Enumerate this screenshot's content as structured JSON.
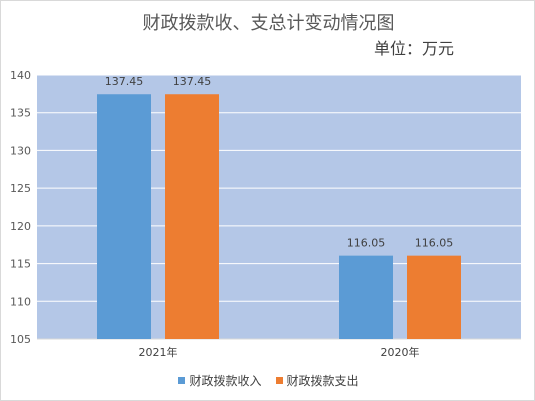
{
  "chart_data": {
    "type": "bar",
    "title": "财政拨款收、支总计变动情况图",
    "subtitle": "单位：万元",
    "categories": [
      "2021年",
      "2020年"
    ],
    "series": [
      {
        "name": "财政拨款收入",
        "values": [
          137.45,
          116.05
        ],
        "color": "#5B9BD5"
      },
      {
        "name": "财政拨款支出",
        "values": [
          137.45,
          116.05
        ],
        "color": "#ED7D31"
      }
    ],
    "data_labels": [
      [
        "137.45",
        "116.05"
      ],
      [
        "137.45",
        "116.05"
      ]
    ],
    "ylim": [
      105,
      140
    ],
    "yticks": [
      105,
      110,
      115,
      120,
      125,
      130,
      135,
      140
    ],
    "plot_background": "#B4C7E7",
    "grid": true,
    "legend_position": "bottom"
  }
}
